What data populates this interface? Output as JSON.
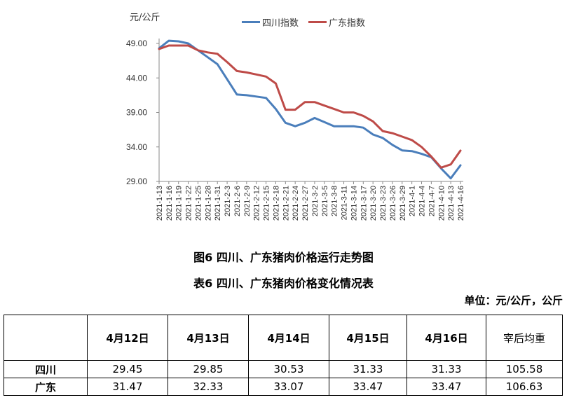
{
  "chart": {
    "y_unit": "元/公斤",
    "legend": [
      {
        "label": "四川指数",
        "color": "#4a7ebb"
      },
      {
        "label": "广东指数",
        "color": "#be4b48"
      }
    ],
    "y_ticks": [
      "49.00",
      "44.00",
      "39.00",
      "34.00",
      "29.00"
    ]
  },
  "chart_data": {
    "type": "line",
    "title": "图6 四川、广东猪肉价格运行走势图",
    "xlabel": "",
    "ylabel": "元/公斤",
    "ylim": [
      29.0,
      50.0
    ],
    "y_ticks": [
      29.0,
      34.0,
      39.0,
      44.0,
      49.0
    ],
    "grid": false,
    "legend_position": "top",
    "x": [
      "2021-1-13",
      "2021-1-16",
      "2021-1-19",
      "2021-1-22",
      "2021-1-25",
      "2021-1-28",
      "2021-1-31",
      "2021-2-3",
      "2021-2-6",
      "2021-2-9",
      "2021-2-12",
      "2021-2-15",
      "2021-2-18",
      "2021-2-21",
      "2021-2-24",
      "2021-2-27",
      "2021-3-2",
      "2021-3-5",
      "2021-3-8",
      "2021-3-11",
      "2021-3-14",
      "2021-3-17",
      "2021-3-20",
      "2021-3-23",
      "2021-3-26",
      "2021-3-29",
      "2021-4-1",
      "2021-4-4",
      "2021-4-7",
      "2021-4-10",
      "2021-4-13",
      "2021-4-16"
    ],
    "series": [
      {
        "name": "四川指数",
        "color": "#4a7ebb",
        "values": [
          48.3,
          49.4,
          49.3,
          49.0,
          48.0,
          47.0,
          46.0,
          43.8,
          41.6,
          41.5,
          41.3,
          41.1,
          39.5,
          37.5,
          37.0,
          37.5,
          38.2,
          37.6,
          37.0,
          37.0,
          37.0,
          36.8,
          35.8,
          35.3,
          34.3,
          33.5,
          33.4,
          33.0,
          32.5,
          30.9,
          29.45,
          31.33
        ]
      },
      {
        "name": "广东指数",
        "color": "#be4b48",
        "values": [
          48.2,
          48.7,
          48.7,
          48.7,
          48.0,
          47.7,
          47.5,
          46.3,
          45.0,
          44.8,
          44.5,
          44.2,
          43.2,
          39.4,
          39.4,
          40.5,
          40.5,
          40.0,
          39.5,
          39.0,
          39.0,
          38.5,
          37.7,
          36.3,
          36.0,
          35.5,
          35.0,
          34.0,
          32.6,
          31.0,
          31.47,
          33.47
        ]
      }
    ]
  },
  "captions": {
    "figure_title": "图6 四川、广东猪肉价格运行走势图",
    "table_title": "表6 四川、广东猪肉价格变化情况表",
    "unit_note": "单位：元/公斤，公斤"
  },
  "table": {
    "headers": [
      "",
      "4月12日",
      "4月13日",
      "4月14日",
      "4月15日",
      "4月16日",
      "宰后均重"
    ],
    "rows": [
      {
        "label": "四川",
        "values": [
          "29.45",
          "29.85",
          "30.53",
          "31.33",
          "31.33",
          "105.58"
        ]
      },
      {
        "label": "广东",
        "values": [
          "31.47",
          "32.33",
          "33.07",
          "33.47",
          "33.47",
          "106.63"
        ]
      }
    ]
  }
}
